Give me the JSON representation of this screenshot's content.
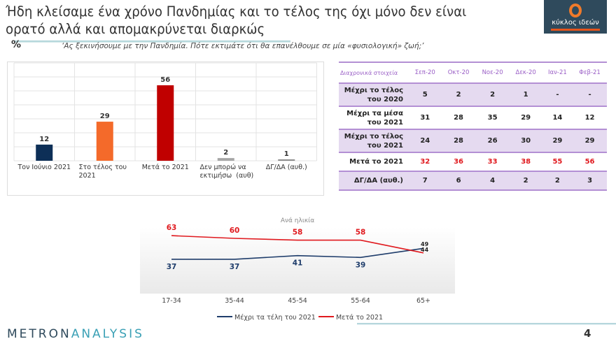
{
  "header": {
    "title": "Ήδη κλείσαμε ένα χρόνο Πανδημίας και το τέλος της όχι μόνο δεν είναι ορατό αλλά και απομακρύνεται διαρκώς",
    "logo_text": "κύκλος ιδεών",
    "percent_symbol": "%",
    "question": "‘Ας ξεκινήσουμε με την Πανδημία. Πότε εκτιμάτε ότι θα επανέλθουμε σε μία «φυσιολογική» ζωή;’"
  },
  "chart_data": [
    {
      "type": "bar",
      "categories": [
        "Τον Ιούνιο 2021",
        "Στο τέλος του 2021",
        "Μετά το 2021",
        "Δεν μπορώ να εκτιμήσω  (αυθ)",
        "ΔΓ/ΔΑ (αυθ.)"
      ],
      "values": [
        12,
        29,
        56,
        2,
        1
      ],
      "colors": [
        "#0d2f57",
        "#f46a2a",
        "#c00000",
        "#a6a6a6",
        "#8c8c8c"
      ],
      "ylim": [
        0,
        70
      ],
      "grid": true
    },
    {
      "type": "line",
      "title": "Ανά ηλικία",
      "categories": [
        "17-34",
        "35-44",
        "45-54",
        "55-64",
        "65+"
      ],
      "series": [
        {
          "name": "Μέχρι τα τέλη του 2021",
          "values": [
            37,
            37,
            41,
            39,
            49
          ],
          "color": "#1f3d6b"
        },
        {
          "name": "Μετά το 2021",
          "values": [
            63,
            60,
            58,
            58,
            44
          ],
          "color": "#e0191e"
        }
      ],
      "legend": "bottom"
    }
  ],
  "table": {
    "corner": "Διαχρονικά στοιχεία",
    "columns": [
      "Σεπ-20",
      "Οκτ-20",
      "Νοε-20",
      "Δεκ-20",
      "Ιαν-21",
      "Φεβ-21"
    ],
    "rows": [
      {
        "label": "Μέχρι το τέλος του 2020",
        "values": [
          "5",
          "2",
          "2",
          "1",
          "-",
          "-"
        ]
      },
      {
        "label": "Μέχρι τα μέσα του 2021",
        "values": [
          "31",
          "28",
          "35",
          "29",
          "14",
          "12"
        ]
      },
      {
        "label": "Μέχρι το τέλος του 2021",
        "values": [
          "24",
          "28",
          "26",
          "30",
          "29",
          "29"
        ]
      },
      {
        "label": "Μετά το 2021",
        "values": [
          "32",
          "36",
          "33",
          "38",
          "55",
          "56"
        ]
      },
      {
        "label": "ΔΓ/ΔΑ (αυθ.)",
        "values": [
          "7",
          "6",
          "4",
          "2",
          "2",
          "3"
        ]
      }
    ]
  },
  "footer": {
    "brand_a": "METRON",
    "brand_b": "ANALYSIS",
    "page": "4"
  }
}
